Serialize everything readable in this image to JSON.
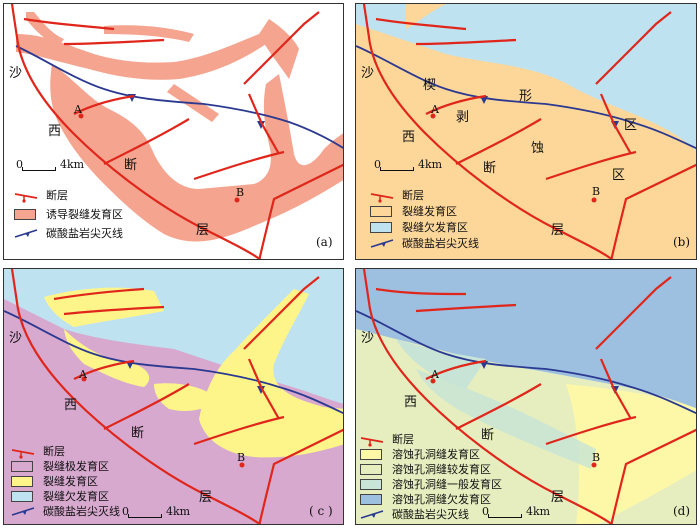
{
  "colors": {
    "fault": "#e0261b",
    "carbonate_line": "#2b3990",
    "induced_zone": "#f4a48f",
    "fracture_developed": "#fdd79a",
    "fracture_under": "#bfe2f0",
    "fracture_extreme": "#d7a9cf",
    "yellow_developed": "#fdf58a",
    "dissolution_developed": "#fdf7a8",
    "dissolution_more": "#e6eec0",
    "dissolution_general": "#c7e4d6",
    "dissolution_under": "#9dbfe0"
  },
  "labels": {
    "sha": "沙",
    "xi": "西",
    "duan": "断",
    "ceng": "层",
    "A": "A",
    "B": "B",
    "wedge_1": "楔",
    "wedge_2": "形",
    "wedge_3": "剥",
    "wedge_4": "蚀",
    "wedge_5": "区",
    "wedge_6": "区"
  },
  "scale_text": "4km",
  "scale_zero": "0",
  "panels": [
    {
      "id": "a",
      "tag": "(a)",
      "legend": [
        {
          "symbol": "fault-icon",
          "text": "断层"
        },
        {
          "color": "#f4a48f",
          "text": "诱导裂缝发育区"
        },
        {
          "symbol": "carbonate-line-icon",
          "text": "碳酸盐岩尖灭线"
        }
      ]
    },
    {
      "id": "b",
      "tag": "(b)",
      "legend": [
        {
          "symbol": "fault-icon",
          "text": "断层"
        },
        {
          "color": "#fdd79a",
          "text": "裂缝发育区"
        },
        {
          "color": "#bfe2f0",
          "text": "裂缝欠发育区"
        },
        {
          "symbol": "carbonate-line-icon",
          "text": "碳酸盐岩尖灭线"
        }
      ]
    },
    {
      "id": "c",
      "tag": "( c )",
      "legend": [
        {
          "symbol": "fault-icon",
          "text": "断层"
        },
        {
          "color": "#d7a9cf",
          "text": "裂缝极发育区"
        },
        {
          "color": "#fdf58a",
          "text": "裂缝发育区"
        },
        {
          "color": "#bfe2f0",
          "text": "裂缝欠发育区"
        },
        {
          "symbol": "carbonate-line-icon",
          "text": "碳酸盐岩尖灭线"
        }
      ]
    },
    {
      "id": "d",
      "tag": "(d)",
      "legend": [
        {
          "symbol": "fault-icon",
          "text": "断层"
        },
        {
          "color": "#fdf7a8",
          "text": "溶蚀孔洞缝发育区"
        },
        {
          "color": "#e6eec0",
          "text": "溶蚀孔洞缝较发育区"
        },
        {
          "color": "#c7e4d6",
          "text": "溶蚀孔洞缝一般发育区"
        },
        {
          "color": "#9dbfe0",
          "text": "溶蚀孔洞缝欠发育区"
        },
        {
          "symbol": "carbonate-line-icon",
          "text": "碳酸盐岩尖灭线"
        }
      ]
    }
  ]
}
